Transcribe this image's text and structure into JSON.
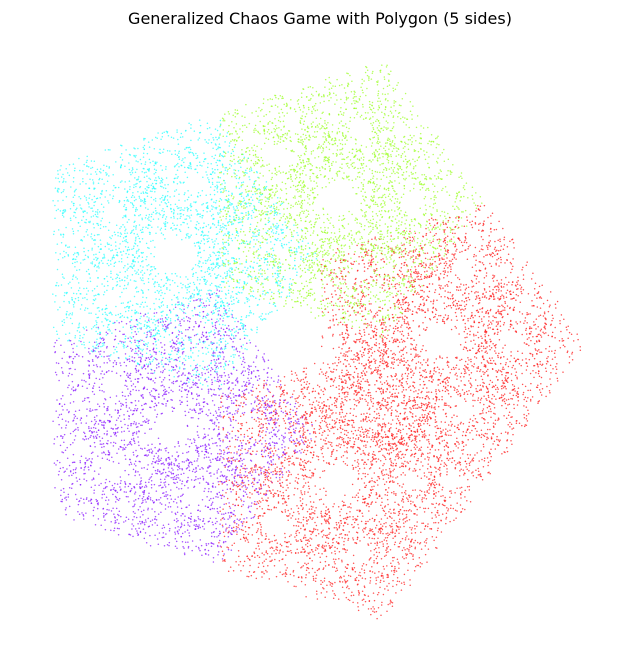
{
  "chart_data": {
    "type": "chaos-game",
    "title": "Generalized Chaos Game with Polygon (5 sides)",
    "sides": 5,
    "colors": [
      "#ff1a1a",
      "#9dff2a",
      "#2affff",
      "#8a1aff",
      "#ff2020"
    ]
  }
}
